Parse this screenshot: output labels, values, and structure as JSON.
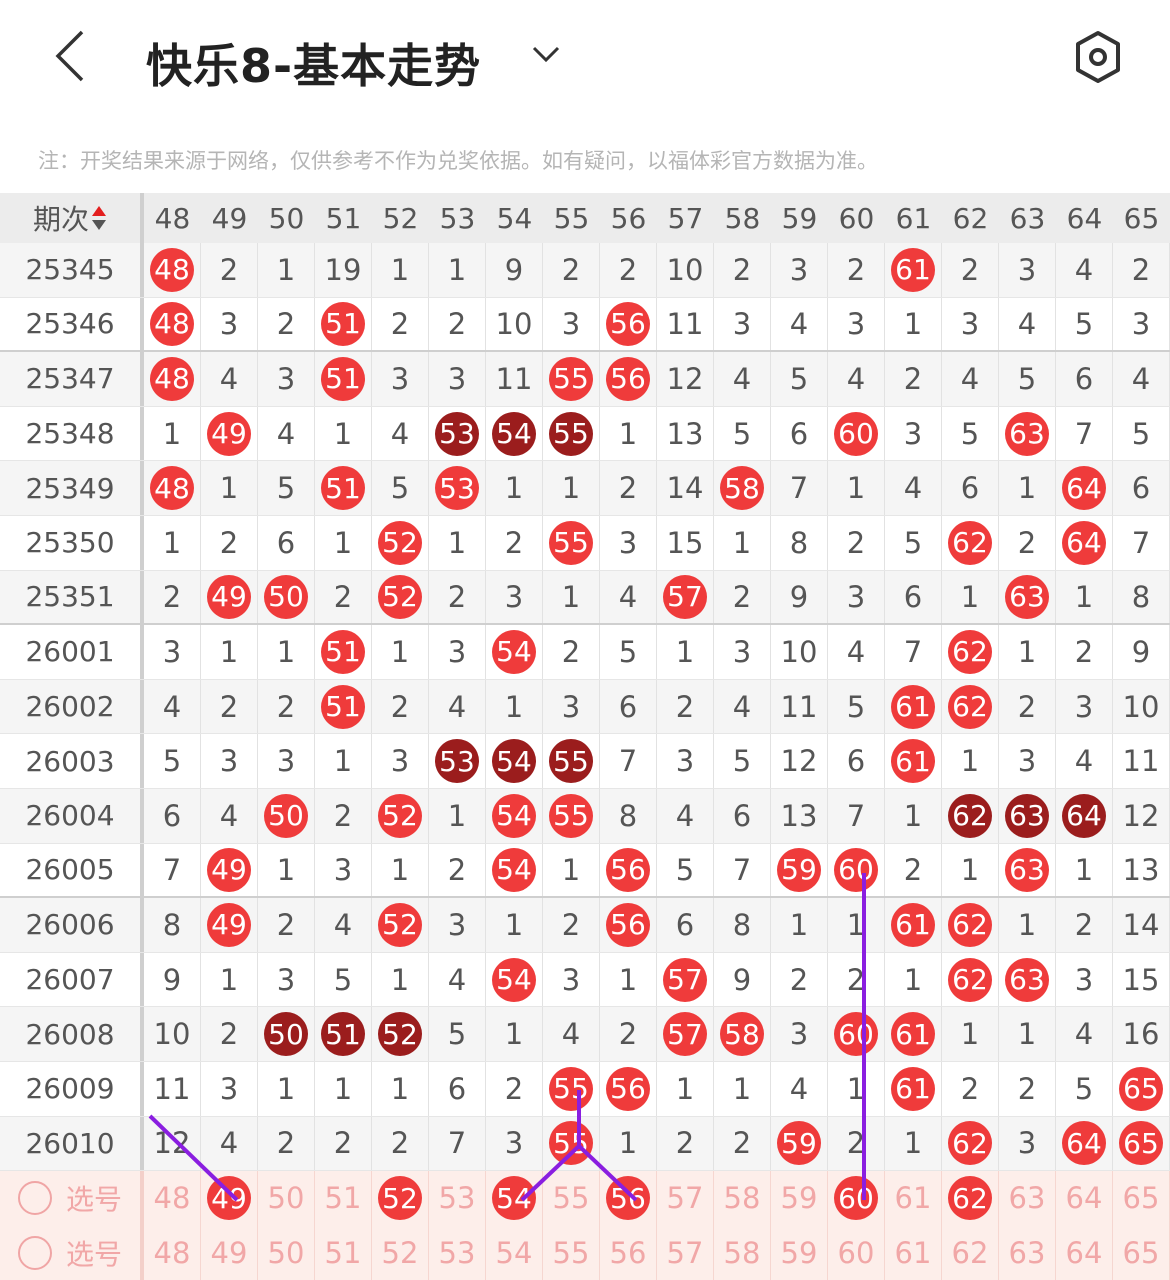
{
  "header": {
    "title": "快乐8-基本走势",
    "back_icon": "chevron-left-icon",
    "dropdown_icon": "chevron-down-icon",
    "settings_icon": "settings-hexagon-icon"
  },
  "note": "注：开奖结果来源于网络，仅供参考不作为兑奖依据。如有疑问，以福体彩官方数据为准。",
  "table": {
    "period_header": "期次",
    "columns": [
      "48",
      "49",
      "50",
      "51",
      "52",
      "53",
      "54",
      "55",
      "56",
      "57",
      "58",
      "59",
      "60",
      "61",
      "62",
      "63",
      "64",
      "65"
    ],
    "colors": {
      "hit": "#ef3b3b",
      "consecutive_hit": "#9b1d1d",
      "line": "#8a1ee0"
    },
    "rows": [
      {
        "period": "25345",
        "cells": [
          "48",
          "2",
          "1",
          "19",
          "1",
          "1",
          "9",
          "2",
          "2",
          "10",
          "2",
          "3",
          "2",
          "61",
          "2",
          "3",
          "4",
          "2"
        ],
        "dark": []
      },
      {
        "period": "25346",
        "cells": [
          "48",
          "3",
          "2",
          "51",
          "2",
          "2",
          "10",
          "3",
          "56",
          "11",
          "3",
          "4",
          "3",
          "1",
          "3",
          "4",
          "5",
          "3"
        ],
        "dark": []
      },
      {
        "period": "25347",
        "cells": [
          "48",
          "4",
          "3",
          "51",
          "3",
          "3",
          "11",
          "55",
          "56",
          "12",
          "4",
          "5",
          "4",
          "2",
          "4",
          "5",
          "6",
          "4"
        ],
        "dark": []
      },
      {
        "period": "25348",
        "cells": [
          "1",
          "49",
          "4",
          "1",
          "4",
          "53",
          "54",
          "55",
          "1",
          "13",
          "5",
          "6",
          "60",
          "3",
          "5",
          "63",
          "7",
          "5"
        ],
        "dark": [
          "53",
          "54",
          "55"
        ]
      },
      {
        "period": "25349",
        "cells": [
          "48",
          "1",
          "5",
          "51",
          "5",
          "53",
          "1",
          "1",
          "2",
          "14",
          "58",
          "7",
          "1",
          "4",
          "6",
          "1",
          "64",
          "6"
        ],
        "dark": []
      },
      {
        "period": "25350",
        "cells": [
          "1",
          "2",
          "6",
          "1",
          "52",
          "1",
          "2",
          "55",
          "3",
          "15",
          "1",
          "8",
          "2",
          "5",
          "62",
          "2",
          "64",
          "7"
        ],
        "dark": []
      },
      {
        "period": "25351",
        "cells": [
          "2",
          "49",
          "50",
          "2",
          "52",
          "2",
          "3",
          "1",
          "4",
          "57",
          "2",
          "9",
          "3",
          "6",
          "1",
          "63",
          "1",
          "8"
        ],
        "dark": []
      },
      {
        "period": "26001",
        "cells": [
          "3",
          "1",
          "1",
          "51",
          "1",
          "3",
          "54",
          "2",
          "5",
          "1",
          "3",
          "10",
          "4",
          "7",
          "62",
          "1",
          "2",
          "9"
        ],
        "dark": []
      },
      {
        "period": "26002",
        "cells": [
          "4",
          "2",
          "2",
          "51",
          "2",
          "4",
          "1",
          "3",
          "6",
          "2",
          "4",
          "11",
          "5",
          "61",
          "62",
          "2",
          "3",
          "10"
        ],
        "dark": []
      },
      {
        "period": "26003",
        "cells": [
          "5",
          "3",
          "3",
          "1",
          "3",
          "53",
          "54",
          "55",
          "7",
          "3",
          "5",
          "12",
          "6",
          "61",
          "1",
          "3",
          "4",
          "11"
        ],
        "dark": [
          "53",
          "54",
          "55"
        ]
      },
      {
        "period": "26004",
        "cells": [
          "6",
          "4",
          "50",
          "2",
          "52",
          "1",
          "54",
          "55",
          "8",
          "4",
          "6",
          "13",
          "7",
          "1",
          "62",
          "63",
          "64",
          "12"
        ],
        "dark": [
          "62",
          "63",
          "64"
        ]
      },
      {
        "period": "26005",
        "cells": [
          "7",
          "49",
          "1",
          "3",
          "1",
          "2",
          "54",
          "1",
          "56",
          "5",
          "7",
          "59",
          "60",
          "2",
          "1",
          "63",
          "1",
          "13"
        ],
        "dark": []
      },
      {
        "period": "26006",
        "cells": [
          "8",
          "49",
          "2",
          "4",
          "52",
          "3",
          "1",
          "2",
          "56",
          "6",
          "8",
          "1",
          "1",
          "61",
          "62",
          "1",
          "2",
          "14"
        ],
        "dark": []
      },
      {
        "period": "26007",
        "cells": [
          "9",
          "1",
          "3",
          "5",
          "1",
          "4",
          "54",
          "3",
          "1",
          "57",
          "9",
          "2",
          "2",
          "1",
          "62",
          "63",
          "3",
          "15"
        ],
        "dark": []
      },
      {
        "period": "26008",
        "cells": [
          "10",
          "2",
          "50",
          "51",
          "52",
          "5",
          "1",
          "4",
          "2",
          "57",
          "58",
          "3",
          "60",
          "61",
          "1",
          "1",
          "4",
          "16"
        ],
        "dark": [
          "50",
          "51",
          "52"
        ]
      },
      {
        "period": "26009",
        "cells": [
          "11",
          "3",
          "1",
          "1",
          "1",
          "6",
          "2",
          "55",
          "56",
          "1",
          "1",
          "4",
          "1",
          "61",
          "2",
          "2",
          "5",
          "65"
        ],
        "dark": []
      },
      {
        "period": "26010",
        "cells": [
          "12",
          "4",
          "2",
          "2",
          "2",
          "7",
          "3",
          "55",
          "1",
          "2",
          "2",
          "59",
          "2",
          "1",
          "62",
          "3",
          "64",
          "65"
        ],
        "dark": []
      }
    ],
    "select_rows": [
      {
        "label": "选号",
        "selected": [
          "49",
          "52",
          "54",
          "56",
          "60",
          "62"
        ]
      },
      {
        "label": "选号",
        "selected": []
      }
    ]
  }
}
